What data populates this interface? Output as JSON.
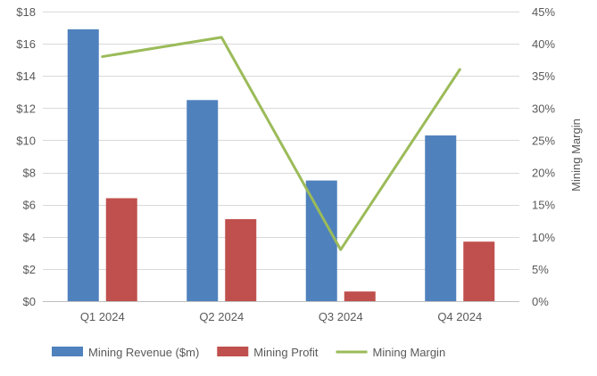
{
  "chart_data": {
    "type": "bar",
    "title": "",
    "categories": [
      "Q1 2024",
      "Q2 2024",
      "Q3 2024",
      "Q4 2024"
    ],
    "series": [
      {
        "name": "Mining Revenue ($m)",
        "type": "bar",
        "axis": "left",
        "color": "#4F81BD",
        "values": [
          16.9,
          12.5,
          7.5,
          10.3
        ]
      },
      {
        "name": "Mining Profit",
        "type": "bar",
        "axis": "left",
        "color": "#C0504D",
        "values": [
          6.4,
          5.1,
          0.6,
          3.7
        ]
      },
      {
        "name": "Mining Margin",
        "type": "line",
        "axis": "right",
        "color": "#9BBB59",
        "values": [
          38,
          41,
          8,
          36
        ]
      }
    ],
    "y_left": {
      "label": "",
      "min": 0,
      "max": 18,
      "step": 2,
      "ticks": [
        "$0",
        "$2",
        "$4",
        "$6",
        "$8",
        "$10",
        "$12",
        "$14",
        "$16",
        "$18"
      ]
    },
    "y_right": {
      "label": "Mining Margin",
      "min": 0,
      "max": 45,
      "step": 5,
      "ticks": [
        "0%",
        "5%",
        "10%",
        "15%",
        "20%",
        "25%",
        "30%",
        "35%",
        "40%",
        "45%"
      ]
    },
    "grid": true,
    "legend_position": "bottom"
  }
}
